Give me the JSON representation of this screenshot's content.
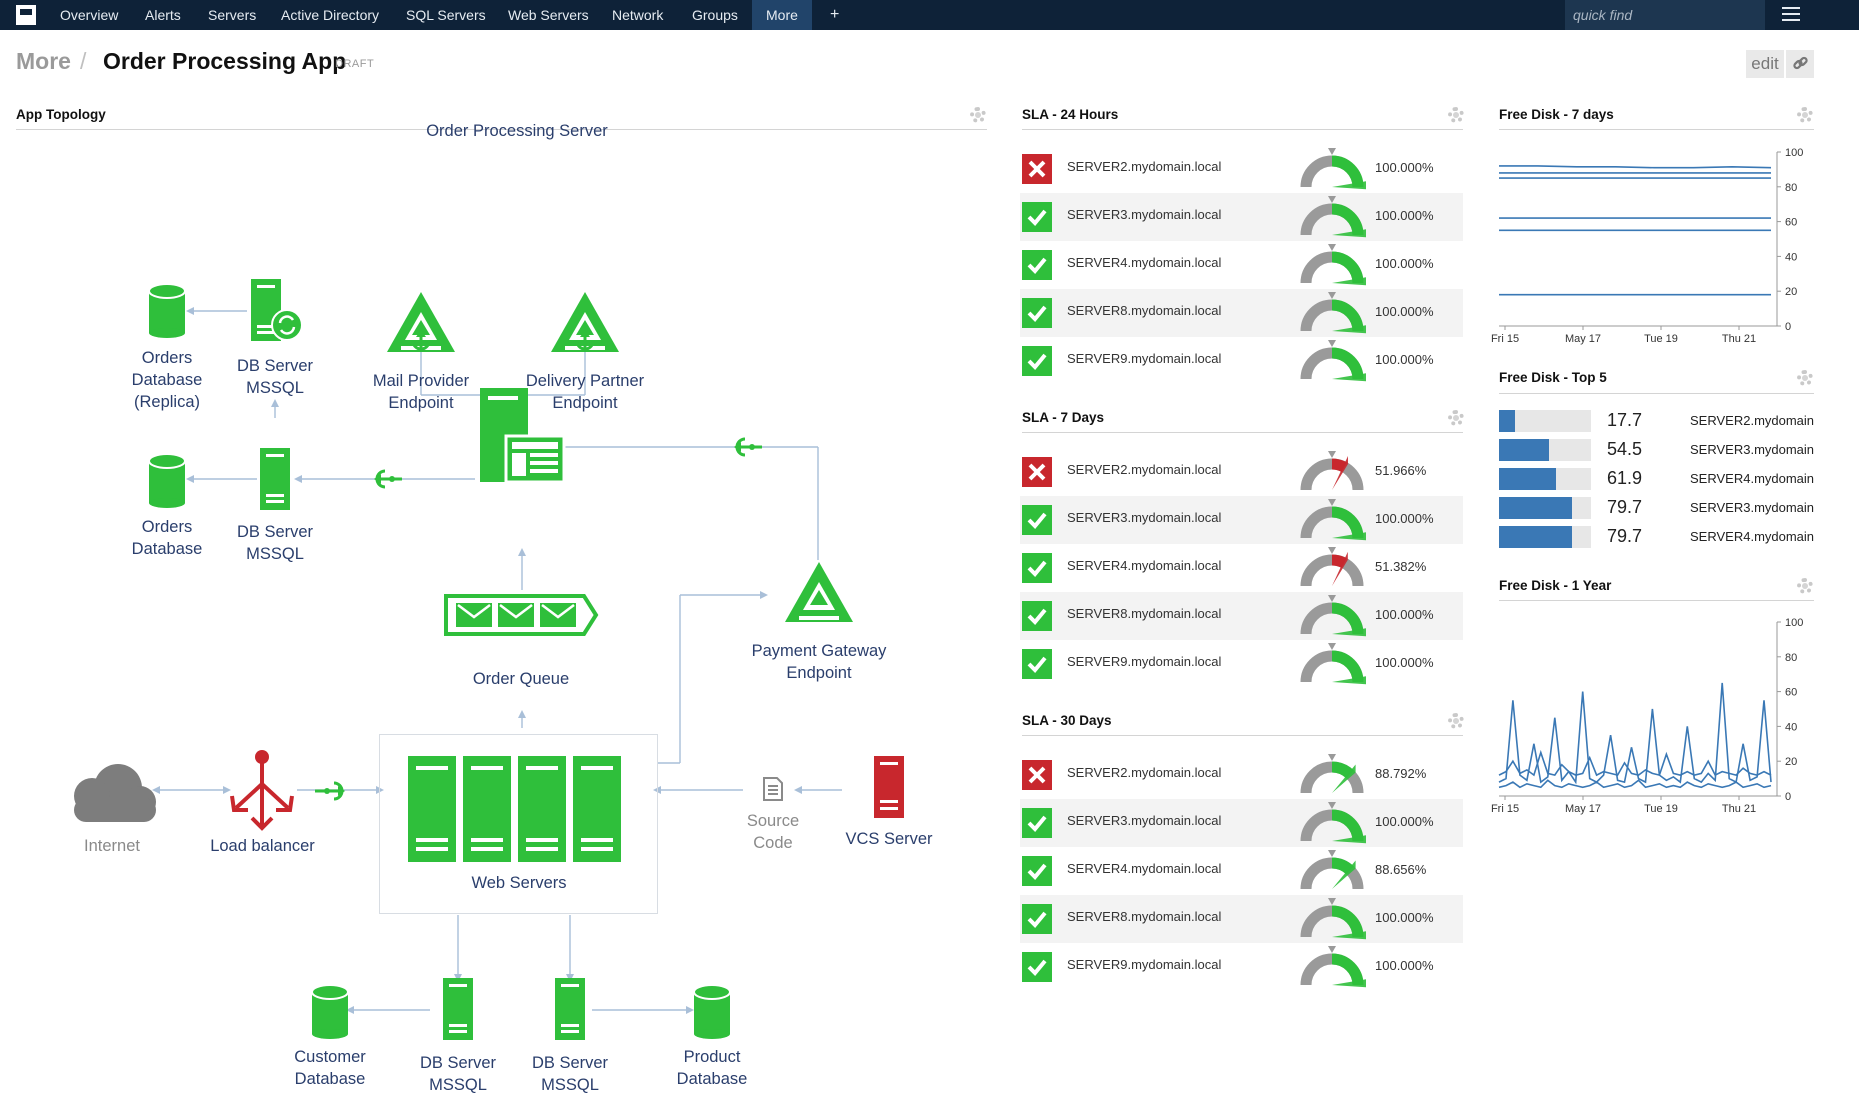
{
  "nav": {
    "items": [
      "Overview",
      "Alerts",
      "Servers",
      "Active Directory",
      "SQL Servers",
      "Web Servers",
      "Network",
      "Groups",
      "More",
      "+"
    ],
    "active": "More",
    "quick_find_placeholder": "quick find"
  },
  "breadcrumb": {
    "parent": "More",
    "separator": "/",
    "title": "Order Processing App",
    "badge": "DRAFT"
  },
  "toolbar": {
    "edit_label": "edit"
  },
  "topology": {
    "title": "App Topology",
    "nodes": {
      "mail_provider": "Mail Provider\nEndpoint",
      "delivery_partner": "Delivery Partner\nEndpoint",
      "orders_db_replica": "Orders\nDatabase\n(Replica)",
      "db_server_top": "DB Server\nMSSQL",
      "orders_db": "Orders\nDatabase",
      "db_server_mid": "DB Server\nMSSQL",
      "order_processing_server": "Order Processing Server",
      "order_queue": "Order Queue",
      "payment_gateway": "Payment Gateway\nEndpoint",
      "internet": "Internet",
      "load_balancer": "Load balancer",
      "web_servers": "Web Servers",
      "source_code": "Source\nCode",
      "vcs_server": "VCS Server",
      "customer_db": "Customer\nDatabase",
      "db_server_bottom_left": "DB Server\nMSSQL",
      "db_server_bottom_right": "DB Server\nMSSQL",
      "product_db": "Product\nDatabase"
    },
    "colors": {
      "green": "#2fbf3b",
      "red": "#c8272d",
      "grey": "#7d7d7d",
      "navy": "#2a3e6c"
    }
  },
  "sla": [
    {
      "title": "SLA - 24 Hours",
      "rows": [
        {
          "server": "SERVER2.mydomain.local",
          "status": "fail",
          "value": "100.000%",
          "sla": 1.0
        },
        {
          "server": "SERVER3.mydomain.local",
          "status": "ok",
          "value": "100.000%",
          "sla": 1.0
        },
        {
          "server": "SERVER4.mydomain.local",
          "status": "ok",
          "value": "100.000%",
          "sla": 1.0
        },
        {
          "server": "SERVER8.mydomain.local",
          "status": "ok",
          "value": "100.000%",
          "sla": 1.0
        },
        {
          "server": "SERVER9.mydomain.local",
          "status": "ok",
          "value": "100.000%",
          "sla": 1.0
        }
      ]
    },
    {
      "title": "SLA - 7 Days",
      "rows": [
        {
          "server": "SERVER2.mydomain.local",
          "status": "fail",
          "value": "51.966%",
          "sla": 0.51966
        },
        {
          "server": "SERVER3.mydomain.local",
          "status": "ok",
          "value": "100.000%",
          "sla": 1.0
        },
        {
          "server": "SERVER4.mydomain.local",
          "status": "ok",
          "value": "51.382%",
          "sla": 0.51382
        },
        {
          "server": "SERVER8.mydomain.local",
          "status": "ok",
          "value": "100.000%",
          "sla": 1.0
        },
        {
          "server": "SERVER9.mydomain.local",
          "status": "ok",
          "value": "100.000%",
          "sla": 1.0
        }
      ]
    },
    {
      "title": "SLA - 30 Days",
      "rows": [
        {
          "server": "SERVER2.mydomain.local",
          "status": "fail",
          "value": "88.792%",
          "sla": 0.88792
        },
        {
          "server": "SERVER3.mydomain.local",
          "status": "ok",
          "value": "100.000%",
          "sla": 1.0
        },
        {
          "server": "SERVER4.mydomain.local",
          "status": "ok",
          "value": "88.656%",
          "sla": 0.88656
        },
        {
          "server": "SERVER8.mydomain.local",
          "status": "ok",
          "value": "100.000%",
          "sla": 1.0
        },
        {
          "server": "SERVER9.mydomain.local",
          "status": "ok",
          "value": "100.000%",
          "sla": 1.0
        }
      ]
    }
  ],
  "free_disk_7d": {
    "title": "Free Disk - 7 days",
    "chart_data": {
      "type": "line",
      "x_ticks": [
        "Fri 15",
        "May 17",
        "Tue 19",
        "Thu 21"
      ],
      "ylim": [
        0,
        100
      ],
      "y_ticks": [
        0,
        20,
        40,
        60,
        80,
        100
      ],
      "series": [
        {
          "values": [
            92,
            92,
            91.5,
            91.5,
            91,
            91,
            91.5,
            91
          ]
        },
        {
          "values": [
            88,
            88,
            88,
            88,
            88,
            88,
            88,
            88
          ]
        },
        {
          "values": [
            85,
            85,
            85,
            85,
            85,
            85,
            85,
            85
          ]
        },
        {
          "values": [
            62,
            62,
            62,
            62,
            62,
            62,
            62,
            62
          ]
        },
        {
          "values": [
            55,
            55,
            55,
            55,
            55,
            55,
            55,
            55
          ]
        },
        {
          "values": [
            18,
            18,
            18,
            18,
            18,
            18,
            18,
            18
          ]
        }
      ],
      "color": "#3a78b5"
    }
  },
  "free_disk_top5": {
    "title": "Free Disk - Top 5",
    "chart_data": {
      "type": "bar",
      "categories": [
        "SERVER2.mydomain",
        "SERVER3.mydomain",
        "SERVER4.mydomain",
        "SERVER3.mydomain",
        "SERVER4.mydomain"
      ],
      "values": [
        17.7,
        54.5,
        61.9,
        79.7,
        79.7
      ],
      "labels": [
        "17.7",
        "54.5",
        "61.9",
        "79.7",
        "79.7"
      ],
      "ylim": [
        0,
        100
      ],
      "color": "#3a78b5"
    }
  },
  "free_disk_1y": {
    "title": "Free Disk - 1 Year",
    "chart_data": {
      "type": "line",
      "x_ticks": [
        "Fri 15",
        "May 17",
        "Tue 19",
        "Thu 21"
      ],
      "ylim": [
        0,
        100
      ],
      "y_ticks": [
        0,
        20,
        40,
        60,
        80,
        100
      ],
      "series": [
        {
          "values": [
            8,
            10,
            55,
            12,
            9,
            30,
            8,
            11,
            45,
            9,
            14,
            8,
            60,
            10,
            8,
            12,
            35,
            9,
            8,
            28,
            10,
            8,
            50,
            12,
            9,
            11,
            8,
            40,
            10,
            8,
            13,
            9,
            65,
            10,
            8,
            30,
            9,
            11,
            55,
            8
          ]
        },
        {
          "values": [
            12,
            14,
            20,
            13,
            15,
            12,
            25,
            13,
            12,
            18,
            14,
            12,
            13,
            22,
            12,
            14,
            13,
            12,
            19,
            13,
            12,
            15,
            13,
            12,
            24,
            13,
            12,
            14,
            12,
            13,
            20,
            12,
            14,
            13,
            12,
            16,
            13,
            12,
            14,
            12
          ]
        },
        {
          "values": [
            5,
            6,
            8,
            5,
            7,
            6,
            5,
            9,
            6,
            5,
            7,
            6,
            5,
            6,
            8,
            5,
            6,
            7,
            5,
            6,
            9,
            5,
            6,
            7,
            5,
            6,
            5,
            8,
            6,
            5,
            7,
            6,
            5,
            6,
            8,
            5,
            6,
            7,
            5,
            6
          ]
        }
      ],
      "color": "#3a78b5"
    }
  }
}
